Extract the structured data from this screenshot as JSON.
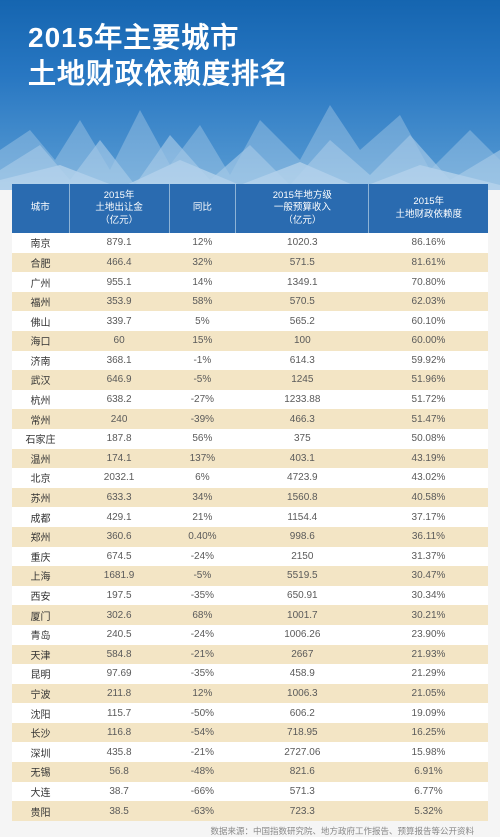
{
  "header": {
    "title_line1": "2015年主要城市",
    "title_line2": "土地财政依赖度排名",
    "bg_gradient_top": "#1565b0",
    "bg_gradient_mid": "#2877c2",
    "bg_gradient_bot": "#5a9dd4",
    "title_color": "#ffffff",
    "title_fontsize": 28
  },
  "source_note": "数据来源：中国指数研究院、地方政府工作报告、预算报告等公开资料",
  "table": {
    "header_bg": "#2a6bb0",
    "header_fg": "#ffffff",
    "row_odd_bg": "#ffffff",
    "row_even_bg": "#f3e5c5",
    "text_color": "#5a5a5a",
    "columns": [
      {
        "key": "city",
        "label": "城市",
        "width": "12%"
      },
      {
        "key": "land_sale",
        "label": "2015年\n土地出让金\n（亿元）",
        "width": "21%"
      },
      {
        "key": "yoy",
        "label": "同比",
        "width": "14%"
      },
      {
        "key": "budget_rev",
        "label": "2015年地方级\n一般预算收入\n（亿元）",
        "width": "28%"
      },
      {
        "key": "dependence",
        "label": "2015年\n土地财政依赖度",
        "width": "25%"
      }
    ],
    "rows": [
      {
        "city": "南京",
        "land_sale": "879.1",
        "yoy": "12%",
        "budget_rev": "1020.3",
        "dependence": "86.16%"
      },
      {
        "city": "合肥",
        "land_sale": "466.4",
        "yoy": "32%",
        "budget_rev": "571.5",
        "dependence": "81.61%"
      },
      {
        "city": "广州",
        "land_sale": "955.1",
        "yoy": "14%",
        "budget_rev": "1349.1",
        "dependence": "70.80%"
      },
      {
        "city": "福州",
        "land_sale": "353.9",
        "yoy": "58%",
        "budget_rev": "570.5",
        "dependence": "62.03%"
      },
      {
        "city": "佛山",
        "land_sale": "339.7",
        "yoy": "5%",
        "budget_rev": "565.2",
        "dependence": "60.10%"
      },
      {
        "city": "海口",
        "land_sale": "60",
        "yoy": "15%",
        "budget_rev": "100",
        "dependence": "60.00%"
      },
      {
        "city": "济南",
        "land_sale": "368.1",
        "yoy": "-1%",
        "budget_rev": "614.3",
        "dependence": "59.92%"
      },
      {
        "city": "武汉",
        "land_sale": "646.9",
        "yoy": "-5%",
        "budget_rev": "1245",
        "dependence": "51.96%"
      },
      {
        "city": "杭州",
        "land_sale": "638.2",
        "yoy": "-27%",
        "budget_rev": "1233.88",
        "dependence": "51.72%"
      },
      {
        "city": "常州",
        "land_sale": "240",
        "yoy": "-39%",
        "budget_rev": "466.3",
        "dependence": "51.47%"
      },
      {
        "city": "石家庄",
        "land_sale": "187.8",
        "yoy": "56%",
        "budget_rev": "375",
        "dependence": "50.08%"
      },
      {
        "city": "温州",
        "land_sale": "174.1",
        "yoy": "137%",
        "budget_rev": "403.1",
        "dependence": "43.19%"
      },
      {
        "city": "北京",
        "land_sale": "2032.1",
        "yoy": "6%",
        "budget_rev": "4723.9",
        "dependence": "43.02%"
      },
      {
        "city": "苏州",
        "land_sale": "633.3",
        "yoy": "34%",
        "budget_rev": "1560.8",
        "dependence": "40.58%"
      },
      {
        "city": "成都",
        "land_sale": "429.1",
        "yoy": "21%",
        "budget_rev": "1154.4",
        "dependence": "37.17%"
      },
      {
        "city": "郑州",
        "land_sale": "360.6",
        "yoy": "0.40%",
        "budget_rev": "998.6",
        "dependence": "36.11%"
      },
      {
        "city": "重庆",
        "land_sale": "674.5",
        "yoy": "-24%",
        "budget_rev": "2150",
        "dependence": "31.37%"
      },
      {
        "city": "上海",
        "land_sale": "1681.9",
        "yoy": "-5%",
        "budget_rev": "5519.5",
        "dependence": "30.47%"
      },
      {
        "city": "西安",
        "land_sale": "197.5",
        "yoy": "-35%",
        "budget_rev": "650.91",
        "dependence": "30.34%"
      },
      {
        "city": "厦门",
        "land_sale": "302.6",
        "yoy": "68%",
        "budget_rev": "1001.7",
        "dependence": "30.21%"
      },
      {
        "city": "青岛",
        "land_sale": "240.5",
        "yoy": "-24%",
        "budget_rev": "1006.26",
        "dependence": "23.90%"
      },
      {
        "city": "天津",
        "land_sale": "584.8",
        "yoy": "-21%",
        "budget_rev": "2667",
        "dependence": "21.93%"
      },
      {
        "city": "昆明",
        "land_sale": "97.69",
        "yoy": "-35%",
        "budget_rev": "458.9",
        "dependence": "21.29%"
      },
      {
        "city": "宁波",
        "land_sale": "211.8",
        "yoy": "12%",
        "budget_rev": "1006.3",
        "dependence": "21.05%"
      },
      {
        "city": "沈阳",
        "land_sale": "115.7",
        "yoy": "-50%",
        "budget_rev": "606.2",
        "dependence": "19.09%"
      },
      {
        "city": "长沙",
        "land_sale": "116.8",
        "yoy": "-54%",
        "budget_rev": "718.95",
        "dependence": "16.25%"
      },
      {
        "city": "深圳",
        "land_sale": "435.8",
        "yoy": "-21%",
        "budget_rev": "2727.06",
        "dependence": "15.98%"
      },
      {
        "city": "无锡",
        "land_sale": "56.8",
        "yoy": "-48%",
        "budget_rev": "821.6",
        "dependence": "6.91%"
      },
      {
        "city": "大连",
        "land_sale": "38.7",
        "yoy": "-66%",
        "budget_rev": "571.3",
        "dependence": "6.77%"
      },
      {
        "city": "贵阳",
        "land_sale": "38.5",
        "yoy": "-63%",
        "budget_rev": "723.3",
        "dependence": "5.32%"
      }
    ]
  }
}
